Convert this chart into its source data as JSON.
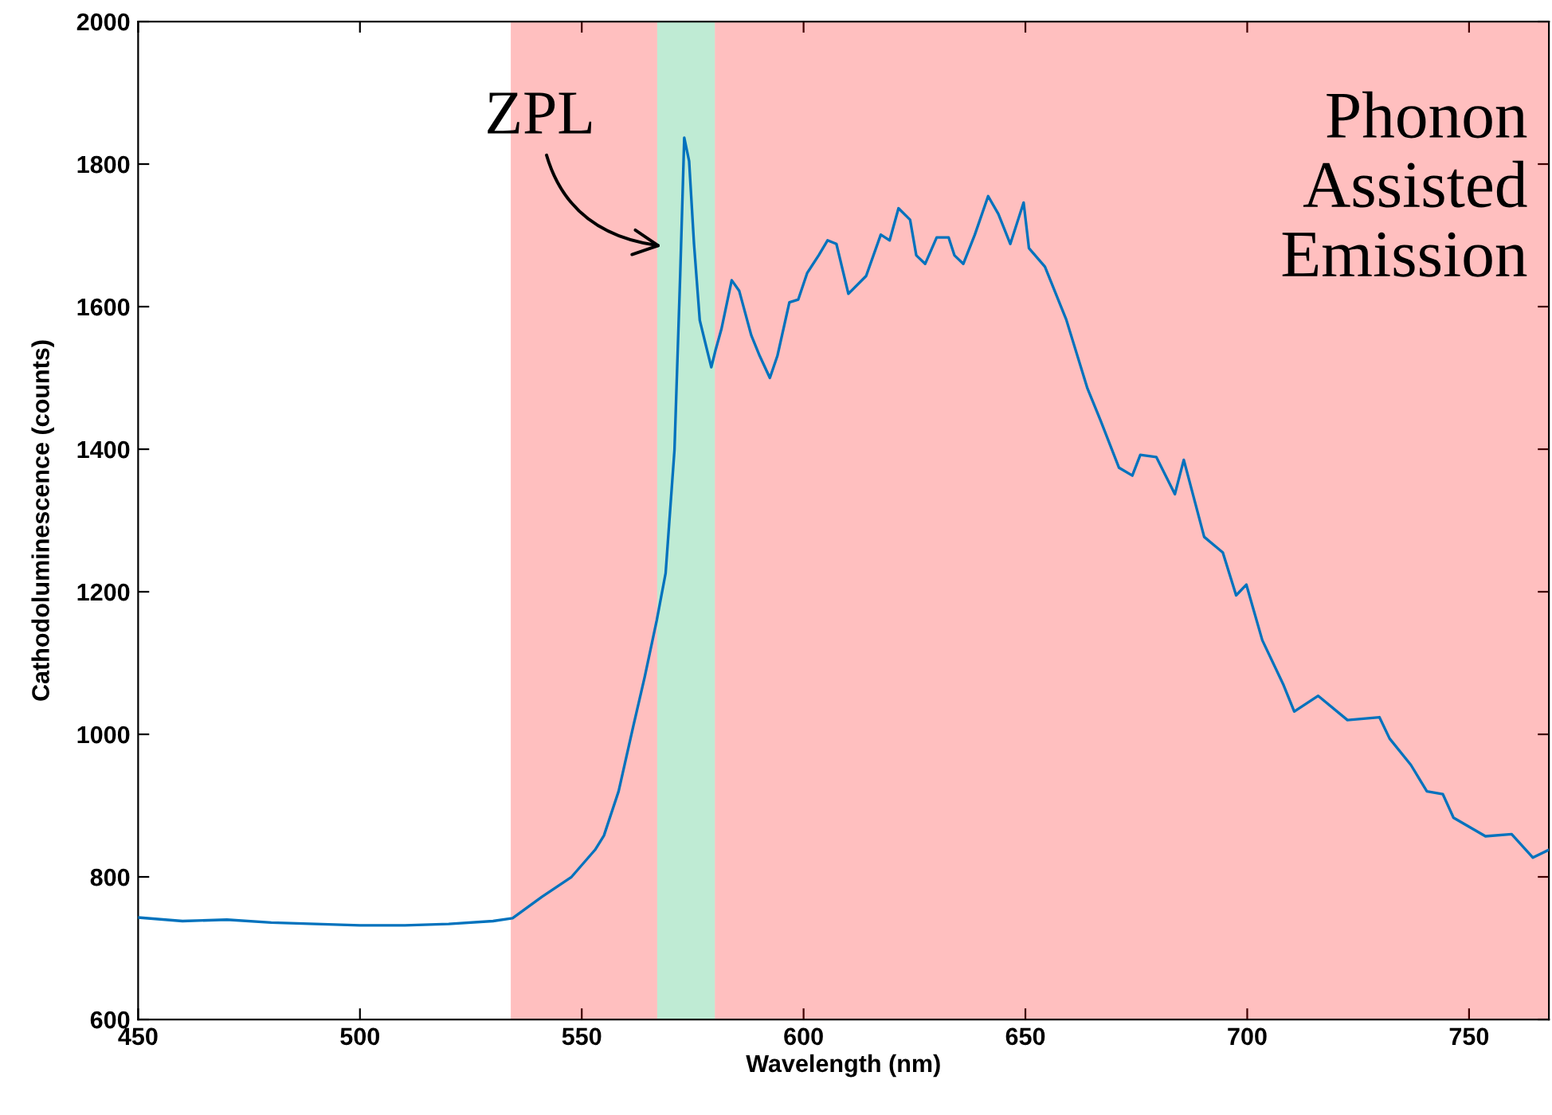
{
  "chart_data": {
    "type": "line",
    "xlabel": "Wavelength (nm)",
    "ylabel": "Cathodoluminescence (counts)",
    "xlim": [
      450,
      768
    ],
    "ylim": [
      600,
      2000
    ],
    "xticks": [
      450,
      500,
      550,
      600,
      650,
      700,
      750
    ],
    "yticks": [
      600,
      800,
      1000,
      1200,
      1400,
      1600,
      1800,
      2000
    ],
    "grid": false,
    "marker": "none",
    "line_style": "solid",
    "series": [
      {
        "color": "#0072bd",
        "x": [
          450,
          460,
          470,
          480,
          490,
          500,
          510,
          520,
          530,
          534.4,
          541,
          547.7,
          553,
          555,
          558.3,
          561.6,
          564.2,
          566.9,
          568.9,
          570.9,
          572.2,
          573.1,
          574.2,
          575.3,
          576.6,
          578.2,
          579.2,
          580.2,
          581.5,
          583.8,
          585.5,
          588.2,
          590.1,
          592.4,
          594.1,
          596.8,
          598.8,
          600.8,
          603.4,
          605.4,
          607.4,
          610.1,
          614.1,
          617.4,
          619.4,
          621.4,
          624,
          625.4,
          627.4,
          630,
          632.7,
          634,
          636,
          638.6,
          641.6,
          643.9,
          646.6,
          649.6,
          650.8,
          654.4,
          659.2,
          664,
          666.9,
          671.1,
          674.1,
          675.9,
          679.5,
          683.7,
          685.7,
          690.3,
          694.5,
          697.5,
          699.8,
          703.4,
          708.2,
          710.6,
          716,
          722.6,
          729.8,
          732.1,
          736.9,
          740.5,
          744.1,
          746.5,
          753.7,
          759.6,
          764.4,
          768
        ],
        "values": [
          743,
          738,
          740,
          736,
          734,
          732,
          732,
          734,
          738,
          742,
          772,
          800,
          838,
          858,
          920,
          1011,
          1081,
          1160,
          1226,
          1399,
          1647,
          1837,
          1804,
          1688,
          1581,
          1540,
          1515,
          1540,
          1569,
          1637,
          1622,
          1560,
          1531,
          1500,
          1531,
          1606,
          1610,
          1647,
          1672,
          1693,
          1688,
          1618,
          1643,
          1701,
          1693,
          1738,
          1722,
          1672,
          1660,
          1697,
          1697,
          1672,
          1660,
          1701,
          1755,
          1730,
          1688,
          1746,
          1682,
          1656,
          1582,
          1485,
          1441,
          1374,
          1363,
          1392,
          1389,
          1337,
          1385,
          1277,
          1255,
          1195,
          1210,
          1132,
          1069,
          1032,
          1054,
          1020,
          1024,
          994,
          957,
          920,
          916,
          883,
          857,
          860,
          827,
          838
        ]
      }
    ],
    "bands": [
      {
        "axis": "x",
        "from": 534,
        "to": 567,
        "color": "#ff0000"
      },
      {
        "axis": "x",
        "from": 567,
        "to": 580,
        "color": "#00af53"
      },
      {
        "axis": "x",
        "from": 580,
        "to": 768,
        "color": "#ff0000"
      }
    ],
    "annotations": [
      {
        "text": "ZPL",
        "x": 568,
        "y": 1685
      },
      "Phonon\nAssisted\nEmission"
    ]
  }
}
